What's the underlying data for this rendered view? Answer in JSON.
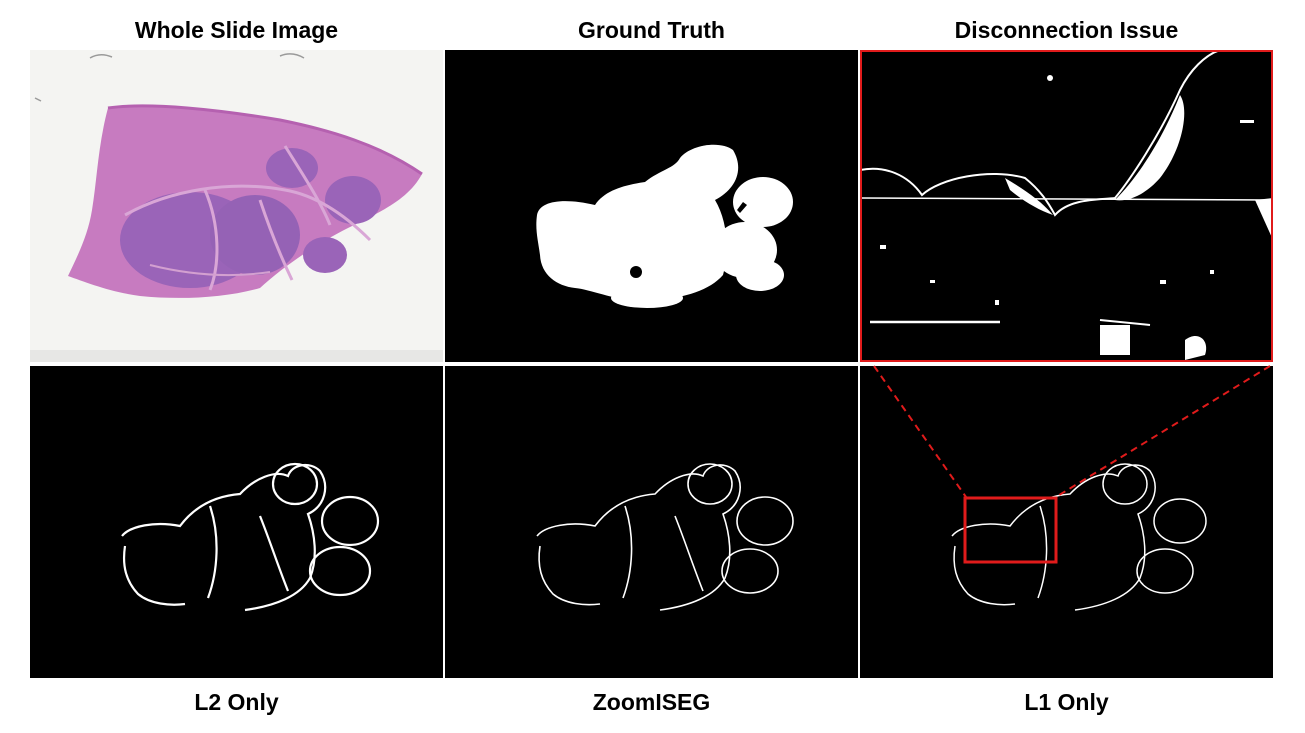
{
  "labels": {
    "top": [
      "Whole Slide Image",
      "Ground Truth",
      "Disconnection Issue"
    ],
    "bottom": [
      "L2 Only",
      "ZoomISEG",
      "L1 Only"
    ]
  },
  "colors": {
    "highlight": "#e01b1b",
    "tissue": "#c77bc0",
    "nodule": "#9a64b8",
    "slide_background": "#f3f3f1",
    "mask_background": "#000000",
    "mask_foreground": "#ffffff"
  },
  "annotations": {
    "zoom_box": "red rectangle on L1 Only panel expanded into Disconnection Issue panel via dashed red lines"
  }
}
